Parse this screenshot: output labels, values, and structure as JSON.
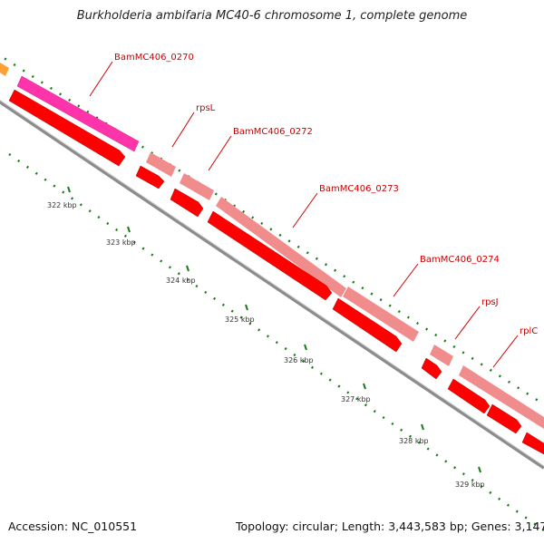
{
  "title": "Burkholderia ambifaria MC40-6 chromosome 1, complete genome",
  "footer": {
    "accession": "Accession: NC_010551",
    "topology": "Topology: circular; Length: 3,443,583 bp; Genes: 3,147"
  },
  "colors": {
    "backbone": "#8c8c8c",
    "cds_red": "#ff0000",
    "gene_light": "#f08c8c",
    "gene_pink": "#ff33aa",
    "gene_orange": "#ffa033",
    "tick_green": "#1a7a1a",
    "label_red": "#cc0000"
  },
  "genes": [
    {
      "name": "BamMC406_0270",
      "type": "pink"
    },
    {
      "name": "rpsL",
      "type": "light"
    },
    {
      "name": "BamMC406_0272",
      "type": "light"
    },
    {
      "name": "BamMC406_0273",
      "type": "light"
    },
    {
      "name": "BamMC406_0274",
      "type": "light"
    },
    {
      "name": "rpsJ",
      "type": "light"
    },
    {
      "name": "rplC",
      "type": "light"
    }
  ],
  "ticks": [
    "322 kbp",
    "323 kbp",
    "324 kbp",
    "325 kbp",
    "326 kbp",
    "327 kbp",
    "328 kbp",
    "329 kbp"
  ]
}
